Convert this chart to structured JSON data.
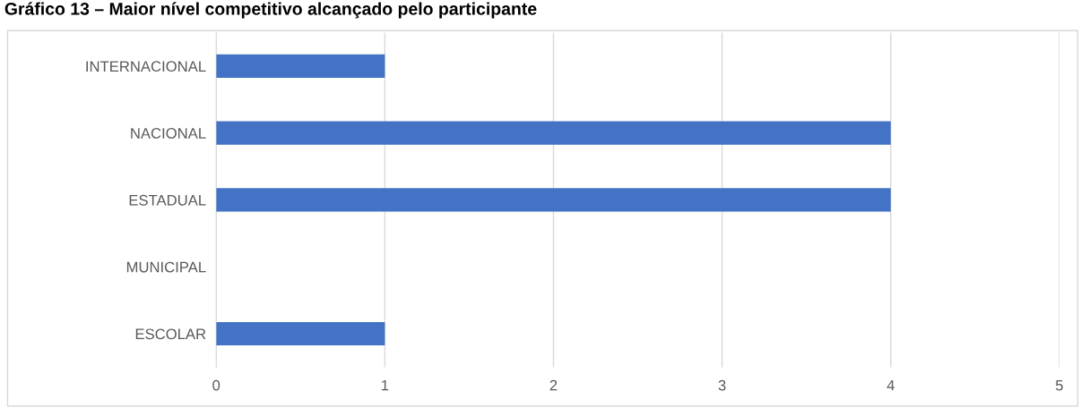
{
  "chart_data": {
    "type": "bar",
    "orientation": "horizontal",
    "title": "Gráfico 13 – Maior nível competitivo alcançado pelo participante",
    "categories": [
      "INTERNACIONAL",
      "NACIONAL",
      "ESTADUAL",
      "MUNICIPAL",
      "ESCOLAR"
    ],
    "values": [
      1,
      4,
      4,
      0,
      1
    ],
    "color": "#4472c4",
    "xlim": [
      0,
      5
    ],
    "xticks": [
      0,
      1,
      2,
      3,
      4,
      5
    ],
    "grid": "x",
    "legend": false
  }
}
